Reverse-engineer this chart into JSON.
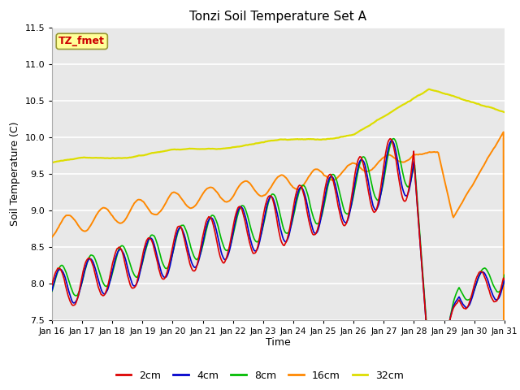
{
  "title": "Tonzi Soil Temperature Set A",
  "xlabel": "Time",
  "ylabel": "Soil Temperature (C)",
  "annotation": "TZ_fmet",
  "annotation_color": "#cc0000",
  "annotation_bg": "#ffff99",
  "annotation_border": "#999966",
  "colors": {
    "2cm": "#dd0000",
    "4cm": "#0000cc",
    "8cm": "#00bb00",
    "16cm": "#ff8800",
    "32cm": "#dddd00"
  },
  "ylim": [
    7.5,
    11.5
  ],
  "background_color": "#e8e8e8",
  "n_points": 480,
  "tick_labels": [
    "Jan 16",
    "Jan 17",
    "Jan 18",
    "Jan 19",
    "Jan 20",
    "Jan 21",
    "Jan 22",
    "Jan 23",
    "Jan 24",
    "Jan 25",
    "Jan 26",
    "Jan 27",
    "Jan 28",
    "Jan 29",
    "Jan 30",
    "Jan 31"
  ],
  "legend_labels": [
    "2cm",
    "4cm",
    "8cm",
    "16cm",
    "32cm"
  ]
}
